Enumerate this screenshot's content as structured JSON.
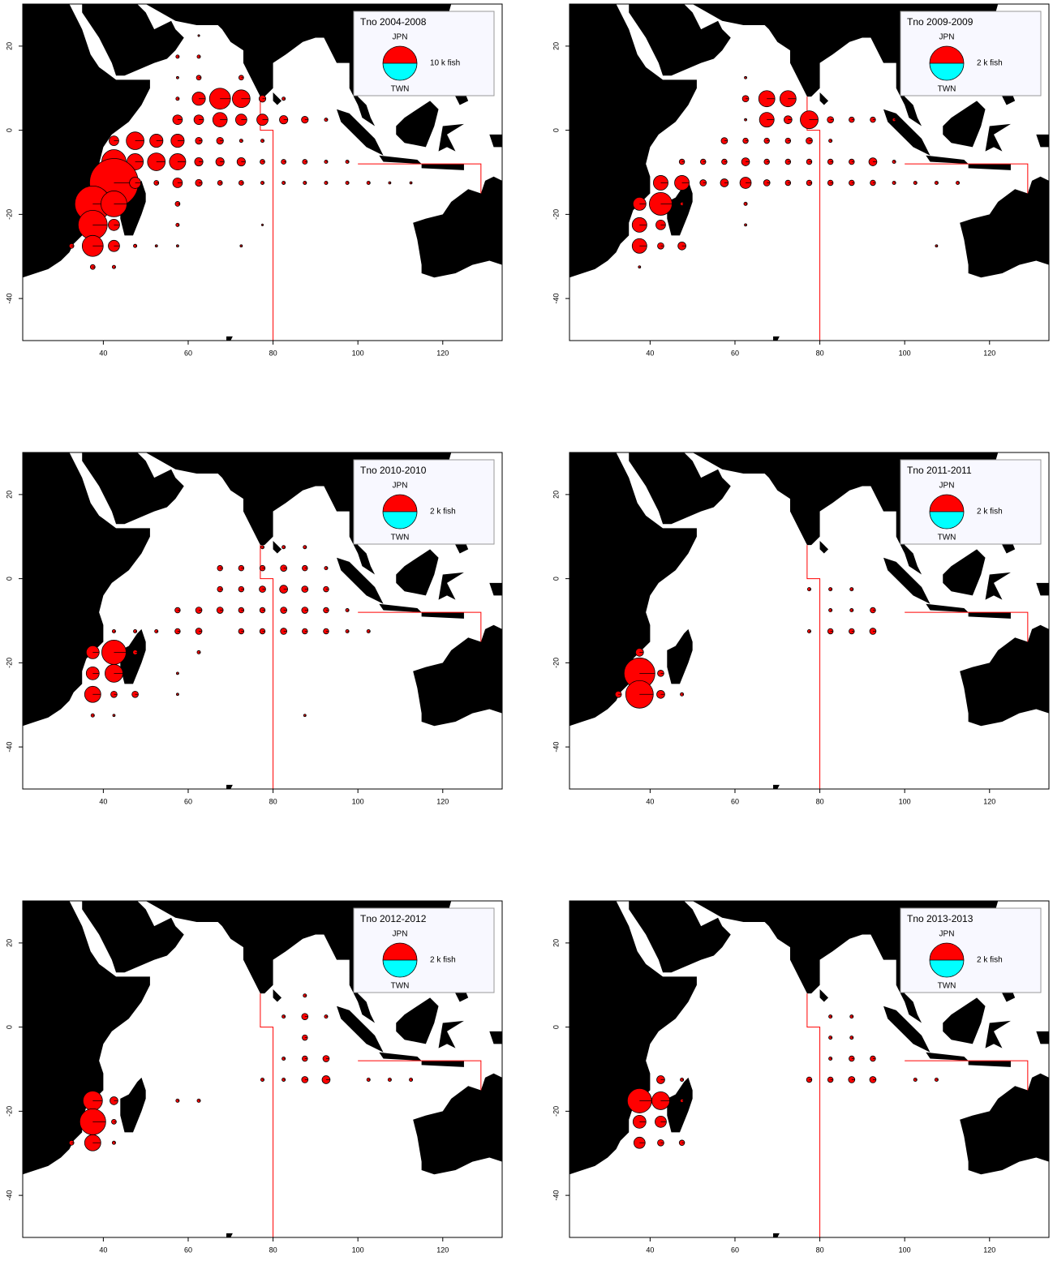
{
  "chart_data": [
    {
      "type": "pie-bubble",
      "title": "Tno 2004-2008",
      "x": [
        62.5,
        57.5,
        62.5,
        57.5,
        62.5,
        72.5,
        57.5,
        62.5,
        67.5,
        72.5,
        77.5,
        82.5,
        57.5,
        62.5,
        67.5,
        72.5,
        77.5,
        82.5,
        87.5,
        92.5,
        42.5,
        47.5,
        52.5,
        57.5,
        62.5,
        67.5,
        72.5,
        77.5,
        42.5,
        47.5,
        52.5,
        57.5,
        62.5,
        67.5,
        72.5,
        77.5,
        82.5,
        87.5,
        92.5,
        97.5,
        42.5,
        47.5,
        52.5,
        57.5,
        62.5,
        67.5,
        72.5,
        77.5,
        82.5,
        87.5,
        92.5,
        97.5,
        102.5,
        107.5,
        112.5,
        37.5,
        42.5,
        57.5,
        37.5,
        42.5,
        57.5,
        77.5,
        32.5,
        37.5,
        42.5,
        47.5,
        52.5,
        57.5,
        72.5,
        37.5,
        42.5
      ],
      "y": [
        22.5,
        17.5,
        17.5,
        12.5,
        12.5,
        12.5,
        7.5,
        7.5,
        7.5,
        7.5,
        7.5,
        7.5,
        2.5,
        2.5,
        2.5,
        2.5,
        2.5,
        2.5,
        2.5,
        2.5,
        -2.5,
        -2.5,
        -2.5,
        -2.5,
        -2.5,
        -2.5,
        -2.5,
        -2.5,
        -7.5,
        -7.5,
        -7.5,
        -7.5,
        -7.5,
        -7.5,
        -7.5,
        -7.5,
        -7.5,
        -7.5,
        -7.5,
        -7.5,
        -12.5,
        -12.5,
        -12.5,
        -12.5,
        -12.5,
        -12.5,
        -12.5,
        -12.5,
        -12.5,
        -12.5,
        -12.5,
        -12.5,
        -12.5,
        -12.5,
        -12.5,
        -17.5,
        -17.5,
        -17.5,
        -22.5,
        -22.5,
        -22.5,
        -22.5,
        -27.5,
        -27.5,
        -27.5,
        -27.5,
        -27.5,
        -27.5,
        -27.5,
        -32.5,
        -32.5
      ],
      "series": [
        {
          "name": "JPN",
          "color": "#ff0000",
          "values": [
            0.03,
            0.1,
            0.1,
            0.05,
            0.2,
            0.2,
            0.1,
            1.5,
            3.8,
            2.7,
            0.4,
            0.1,
            0.8,
            0.8,
            1.8,
            1.1,
            1.1,
            0.6,
            0.4,
            0.1,
            0.8,
            2.7,
            1.5,
            1.5,
            0.4,
            0.4,
            0.1,
            0.1,
            5.1,
            2.3,
            2.7,
            2.3,
            0.6,
            0.6,
            0.6,
            0.2,
            0.2,
            0.2,
            0.1,
            0.1,
            20.4,
            1.1,
            0.2,
            0.8,
            0.4,
            0.2,
            0.2,
            0.1,
            0.1,
            0.1,
            0.1,
            0.1,
            0.1,
            0.05,
            0.05,
            11,
            5.8,
            0.2,
            7.3,
            1.1,
            0.1,
            0.03,
            0.2,
            3.8,
            1.1,
            0.1,
            0.05,
            0.05,
            0.05,
            0.2,
            0.1
          ]
        },
        {
          "name": "TWN",
          "color": "#00ffff",
          "values": [
            0,
            0,
            0,
            0,
            0,
            0,
            0,
            0,
            0,
            0,
            0,
            0,
            0,
            0,
            0,
            0,
            0,
            0,
            0,
            0,
            0,
            0,
            0,
            0,
            0,
            0,
            0,
            0,
            0,
            0,
            0,
            0,
            0,
            0,
            0,
            0,
            0,
            0,
            0,
            0,
            0,
            0,
            0,
            0,
            0,
            0,
            0,
            0,
            0,
            0,
            0,
            0,
            0,
            0,
            0,
            0,
            0,
            0,
            0,
            0,
            0,
            0,
            0,
            0,
            0,
            0,
            0,
            0,
            0,
            0,
            0
          ]
        }
      ],
      "size_legend": {
        "value": 10,
        "label": "10 k fish"
      },
      "xlim": [
        21,
        134
      ],
      "ylim": [
        -50,
        30
      ],
      "xticks": [
        40,
        60,
        80,
        100,
        120
      ],
      "yticks": [
        -40,
        -20,
        0,
        20
      ]
    },
    {
      "type": "pie-bubble",
      "title": "Tno 2009-2009",
      "x": [
        62.5,
        62.5,
        67.5,
        72.5,
        62.5,
        67.5,
        72.5,
        77.5,
        82.5,
        87.5,
        92.5,
        97.5,
        57.5,
        62.5,
        67.5,
        72.5,
        77.5,
        82.5,
        47.5,
        52.5,
        57.5,
        62.5,
        67.5,
        72.5,
        77.5,
        82.5,
        87.5,
        92.5,
        97.5,
        42.5,
        47.5,
        52.5,
        57.5,
        62.5,
        67.5,
        72.5,
        77.5,
        82.5,
        87.5,
        92.5,
        97.5,
        102.5,
        107.5,
        112.5,
        37.5,
        42.5,
        47.5,
        62.5,
        37.5,
        42.5,
        62.5,
        37.5,
        42.5,
        47.5,
        107.5,
        37.5
      ],
      "y": [
        12.5,
        7.5,
        7.5,
        7.5,
        2.5,
        2.5,
        2.5,
        2.5,
        2.5,
        2.5,
        2.5,
        2.5,
        -2.5,
        -2.5,
        -2.5,
        -2.5,
        -2.5,
        -2.5,
        -7.5,
        -7.5,
        -7.5,
        -7.5,
        -7.5,
        -7.5,
        -7.5,
        -7.5,
        -7.5,
        -7.5,
        -7.5,
        -12.5,
        -12.5,
        -12.5,
        -12.5,
        -12.5,
        -12.5,
        -12.5,
        -12.5,
        -12.5,
        -12.5,
        -12.5,
        -12.5,
        -12.5,
        -12.5,
        -12.5,
        -17.5,
        -17.5,
        -17.5,
        -17.5,
        -22.5,
        -22.5,
        -22.5,
        -27.5,
        -27.5,
        -27.5,
        -27.5,
        -32.5
      ],
      "series": [
        {
          "name": "JPN",
          "color": "#ff0000",
          "values": [
            0.01,
            0.07,
            0.45,
            0.45,
            0.01,
            0.37,
            0.11,
            0.55,
            0.07,
            0.05,
            0.05,
            0.02,
            0.07,
            0.05,
            0.05,
            0.05,
            0.07,
            0.02,
            0.05,
            0.05,
            0.05,
            0.11,
            0.05,
            0.05,
            0.05,
            0.05,
            0.05,
            0.11,
            0.02,
            0.37,
            0.37,
            0.07,
            0.11,
            0.22,
            0.07,
            0.05,
            0.05,
            0.05,
            0.05,
            0.05,
            0.02,
            0.02,
            0.02,
            0.02,
            0.29,
            0.89,
            0.02,
            0.02,
            0.37,
            0.16,
            0.01,
            0.37,
            0.07,
            0.11,
            0.01,
            0.01
          ]
        },
        {
          "name": "TWN",
          "color": "#00ffff",
          "values": [
            0,
            0,
            0,
            0,
            0,
            0,
            0,
            0,
            0,
            0,
            0,
            0,
            0,
            0,
            0,
            0,
            0,
            0,
            0,
            0,
            0,
            0,
            0,
            0,
            0,
            0,
            0,
            0,
            0,
            0,
            0,
            0,
            0,
            0,
            0,
            0,
            0,
            0,
            0,
            0,
            0,
            0,
            0,
            0,
            0,
            0,
            0,
            0,
            0,
            0,
            0,
            0,
            0,
            0,
            0,
            0
          ]
        }
      ],
      "size_legend": {
        "value": 2,
        "label": "2 k fish"
      },
      "xlim": [
        21,
        134
      ],
      "ylim": [
        -50,
        30
      ],
      "xticks": [
        40,
        60,
        80,
        100,
        120
      ],
      "yticks": [
        -40,
        -20,
        0,
        20
      ]
    },
    {
      "type": "pie-bubble",
      "title": "Tno 2010-2010",
      "x": [
        77.5,
        82.5,
        87.5,
        67.5,
        72.5,
        77.5,
        82.5,
        87.5,
        92.5,
        67.5,
        72.5,
        77.5,
        82.5,
        87.5,
        92.5,
        57.5,
        62.5,
        67.5,
        72.5,
        77.5,
        82.5,
        87.5,
        92.5,
        97.5,
        42.5,
        47.5,
        52.5,
        57.5,
        62.5,
        72.5,
        77.5,
        82.5,
        87.5,
        92.5,
        97.5,
        102.5,
        37.5,
        42.5,
        47.5,
        62.5,
        37.5,
        42.5,
        57.5,
        37.5,
        42.5,
        47.5,
        57.5,
        37.5,
        42.5,
        87.5
      ],
      "y": [
        7.5,
        7.5,
        7.5,
        2.5,
        2.5,
        2.5,
        2.5,
        2.5,
        2.5,
        -2.5,
        -2.5,
        -2.5,
        -2.5,
        -2.5,
        -2.5,
        -7.5,
        -7.5,
        -7.5,
        -7.5,
        -7.5,
        -7.5,
        -7.5,
        -7.5,
        -7.5,
        -12.5,
        -12.5,
        -12.5,
        -12.5,
        -12.5,
        -12.5,
        -12.5,
        -12.5,
        -12.5,
        -12.5,
        -12.5,
        -12.5,
        -17.5,
        -17.5,
        -17.5,
        -17.5,
        -22.5,
        -22.5,
        -22.5,
        -27.5,
        -27.5,
        -27.5,
        -27.5,
        -32.5,
        -32.5,
        -32.5
      ],
      "series": [
        {
          "name": "JPN",
          "color": "#ff0000",
          "values": [
            0.02,
            0.02,
            0.02,
            0.05,
            0.05,
            0.05,
            0.07,
            0.05,
            0.02,
            0.05,
            0.05,
            0.07,
            0.11,
            0.07,
            0.05,
            0.05,
            0.07,
            0.07,
            0.05,
            0.05,
            0.07,
            0.07,
            0.05,
            0.02,
            0.02,
            0.02,
            0.02,
            0.05,
            0.07,
            0.05,
            0.05,
            0.07,
            0.05,
            0.05,
            0.02,
            0.02,
            0.29,
            1.02,
            0.04,
            0.02,
            0.29,
            0.55,
            0.01,
            0.45,
            0.07,
            0.07,
            0.01,
            0.02,
            0.01,
            0.01
          ]
        },
        {
          "name": "TWN",
          "color": "#00ffff",
          "values": [
            0,
            0,
            0,
            0,
            0,
            0,
            0,
            0,
            0,
            0,
            0,
            0,
            0,
            0,
            0,
            0,
            0,
            0,
            0,
            0,
            0,
            0,
            0,
            0,
            0,
            0,
            0,
            0,
            0,
            0,
            0,
            0,
            0,
            0,
            0,
            0,
            0,
            0,
            0,
            0,
            0,
            0,
            0,
            0,
            0,
            0,
            0,
            0,
            0,
            0
          ]
        }
      ],
      "size_legend": {
        "value": 2,
        "label": "2 k fish"
      },
      "xlim": [
        21,
        134
      ],
      "ylim": [
        -50,
        30
      ],
      "xticks": [
        40,
        60,
        80,
        100,
        120
      ],
      "yticks": [
        -40,
        -20,
        0,
        20
      ]
    },
    {
      "type": "pie-bubble",
      "title": "Tno 2011-2011",
      "x": [
        77.5,
        82.5,
        87.5,
        82.5,
        87.5,
        92.5,
        77.5,
        82.5,
        87.5,
        92.5,
        37.5,
        37.5,
        42.5,
        32.5,
        37.5,
        42.5,
        47.5
      ],
      "y": [
        -2.5,
        -2.5,
        -2.5,
        -7.5,
        -7.5,
        -7.5,
        -12.5,
        -12.5,
        -12.5,
        -12.5,
        -17.5,
        -22.5,
        -22.5,
        -27.5,
        -27.5,
        -27.5,
        -27.5
      ],
      "series": [
        {
          "name": "JPN",
          "color": "#ff0000",
          "values": [
            0.02,
            0.02,
            0.02,
            0.02,
            0.02,
            0.05,
            0.02,
            0.05,
            0.05,
            0.07,
            0.11,
            1.64,
            0.07,
            0.07,
            1.31,
            0.11,
            0.02
          ]
        },
        {
          "name": "TWN",
          "color": "#00ffff",
          "values": [
            0,
            0,
            0,
            0,
            0,
            0,
            0,
            0,
            0,
            0,
            0,
            0,
            0,
            0,
            0,
            0,
            0
          ]
        }
      ],
      "size_legend": {
        "value": 2,
        "label": "2 k fish"
      },
      "xlim": [
        21,
        134
      ],
      "ylim": [
        -50,
        30
      ],
      "xticks": [
        40,
        60,
        80,
        100,
        120
      ],
      "yticks": [
        -40,
        -20,
        0,
        20
      ]
    },
    {
      "type": "pie-bubble",
      "title": "Tno 2012-2012",
      "x": [
        87.5,
        82.5,
        87.5,
        92.5,
        87.5,
        82.5,
        87.5,
        92.5,
        77.5,
        82.5,
        87.5,
        92.5,
        102.5,
        107.5,
        112.5,
        37.5,
        42.5,
        57.5,
        62.5,
        37.5,
        42.5,
        32.5,
        37.5,
        42.5
      ],
      "y": [
        7.5,
        2.5,
        2.5,
        2.5,
        -2.5,
        -7.5,
        -7.5,
        -7.5,
        -12.5,
        -12.5,
        -12.5,
        -12.5,
        -12.5,
        -12.5,
        -12.5,
        -17.5,
        -17.5,
        -17.5,
        -17.5,
        -22.5,
        -22.5,
        -27.5,
        -27.5,
        -27.5
      ],
      "series": [
        {
          "name": "JPN",
          "color": "#ff0000",
          "values": [
            0.02,
            0.02,
            0.07,
            0.02,
            0.05,
            0.02,
            0.05,
            0.07,
            0.02,
            0.02,
            0.07,
            0.11,
            0.02,
            0.02,
            0.02,
            0.65,
            0.11,
            0.02,
            0.02,
            1.16,
            0.04,
            0.04,
            0.45,
            0.02
          ]
        },
        {
          "name": "TWN",
          "color": "#00ffff",
          "values": [
            0,
            0,
            0,
            0,
            0,
            0,
            0,
            0,
            0,
            0,
            0,
            0,
            0,
            0,
            0,
            0,
            0,
            0,
            0,
            0,
            0,
            0,
            0,
            0
          ]
        }
      ],
      "size_legend": {
        "value": 2,
        "label": "2 k fish"
      },
      "xlim": [
        21,
        134
      ],
      "ylim": [
        -50,
        30
      ],
      "xticks": [
        40,
        60,
        80,
        100,
        120
      ],
      "yticks": [
        -40,
        -20,
        0,
        20
      ]
    },
    {
      "type": "pie-bubble",
      "title": "Tno 2013-2013",
      "x": [
        82.5,
        87.5,
        82.5,
        87.5,
        82.5,
        87.5,
        92.5,
        42.5,
        47.5,
        77.5,
        82.5,
        87.5,
        92.5,
        102.5,
        107.5,
        37.5,
        42.5,
        47.5,
        37.5,
        42.5,
        37.5,
        42.5,
        47.5
      ],
      "y": [
        2.5,
        2.5,
        -2.5,
        -2.5,
        -7.5,
        -7.5,
        -7.5,
        -12.5,
        -12.5,
        -12.5,
        -12.5,
        -12.5,
        -12.5,
        -12.5,
        -12.5,
        -17.5,
        -17.5,
        -17.5,
        -22.5,
        -22.5,
        -27.5,
        -27.5,
        -27.5
      ],
      "series": [
        {
          "name": "JPN",
          "color": "#ff0000",
          "values": [
            0.02,
            0.02,
            0.02,
            0.02,
            0.02,
            0.05,
            0.05,
            0.11,
            0.02,
            0.05,
            0.05,
            0.07,
            0.07,
            0.02,
            0.02,
            1.02,
            0.55,
            0.02,
            0.29,
            0.22,
            0.22,
            0.07,
            0.05
          ]
        },
        {
          "name": "TWN",
          "color": "#00ffff",
          "values": [
            0,
            0,
            0,
            0,
            0,
            0,
            0,
            0,
            0,
            0,
            0,
            0,
            0,
            0,
            0,
            0,
            0,
            0,
            0,
            0,
            0,
            0,
            0
          ]
        }
      ],
      "size_legend": {
        "value": 2,
        "label": "2 k fish"
      },
      "xlim": [
        21,
        134
      ],
      "ylim": [
        -50,
        30
      ],
      "xticks": [
        40,
        60,
        80,
        100,
        120
      ],
      "yticks": [
        -40,
        -20,
        0,
        20
      ]
    }
  ]
}
